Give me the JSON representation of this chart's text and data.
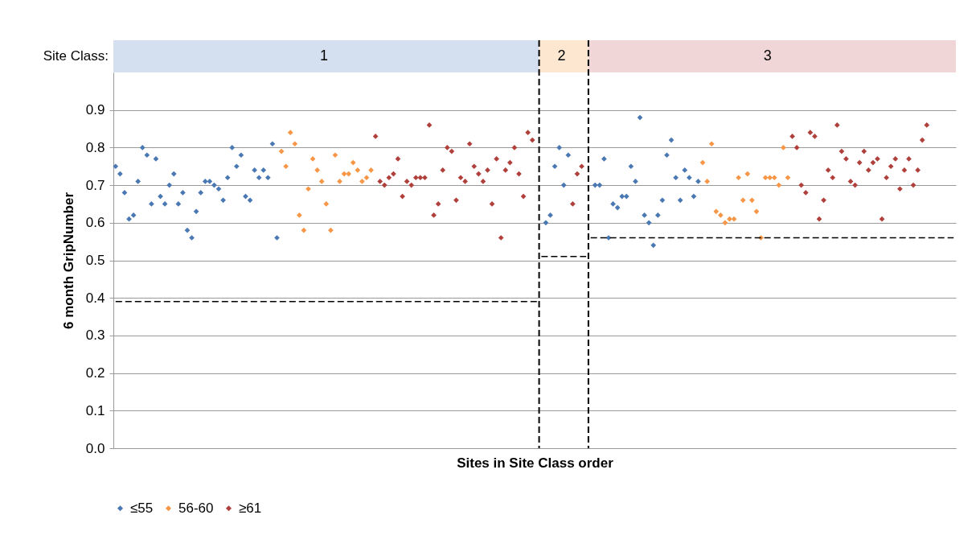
{
  "chart_data": {
    "type": "scatter",
    "xlabel": "Sites in Site Class order",
    "ylabel": "6 month GripNumber",
    "categories": [
      null,
      null,
      null,
      null,
      null,
      null,
      null,
      null,
      null,
      null,
      null,
      null,
      null,
      null,
      null,
      null,
      null,
      null,
      null,
      null,
      null,
      null,
      null,
      null,
      null,
      null,
      null,
      null,
      null,
      null,
      null,
      null,
      null,
      null,
      null,
      null,
      null,
      null,
      null,
      null,
      null,
      null,
      null,
      null,
      null,
      null,
      null,
      null,
      null,
      null,
      null,
      null,
      null,
      null,
      null,
      null,
      null,
      null,
      null,
      null,
      null,
      null,
      null,
      null,
      null,
      null,
      null,
      null,
      null,
      null,
      null,
      null,
      null,
      null,
      null,
      null,
      null,
      null,
      null,
      null,
      null,
      null,
      null,
      null,
      null,
      null,
      null,
      null,
      null,
      null,
      null,
      null,
      null,
      null,
      null,
      null,
      null,
      null,
      null,
      null,
      null,
      null,
      null,
      null,
      null,
      null,
      null,
      null,
      null,
      null,
      null,
      null,
      null,
      null,
      null,
      null,
      null,
      null,
      null,
      null,
      null,
      null,
      null,
      null,
      null,
      null,
      null,
      null,
      null,
      null,
      null,
      null,
      null,
      null,
      null,
      null,
      null,
      null,
      null,
      null,
      null,
      null,
      null,
      null,
      null,
      null,
      null,
      null,
      null,
      null,
      null,
      null,
      null,
      null,
      null,
      null,
      null,
      null,
      null,
      null,
      null,
      null,
      null,
      null,
      null,
      null,
      null,
      null,
      null,
      null,
      null,
      null,
      null,
      null,
      null,
      null,
      null,
      null,
      null,
      null,
      null,
      null,
      null,
      null,
      null,
      null,
      null,
      null
    ],
    "ylim": [
      0,
      1.0
    ],
    "yticks": [
      {
        "value": 0,
        "label": "0.0"
      },
      0.1,
      0.2,
      0.3,
      0.4,
      0.5,
      0.6,
      0.7,
      0.8,
      0.9
    ],
    "grid": "y",
    "legend": "bottom",
    "tick_labels": "y",
    "annotations": [
      "Site Class:",
      "1",
      "2",
      "3"
    ],
    "series": [
      {
        "name": "≤55",
        "marker": "diamond",
        "color": "#4a78b2",
        "values": [
          0.75,
          0.73,
          0.68,
          0.61,
          0.62,
          0.71,
          0.8,
          0.78,
          0.65,
          0.77,
          0.67,
          0.65,
          0.7,
          0.73,
          0.65,
          0.68,
          0.58,
          0.56,
          0.63,
          0.68,
          0.71,
          0.71,
          0.7,
          0.69,
          0.66,
          0.72,
          0.8,
          0.75,
          0.78,
          0.67,
          0.66,
          0.74,
          0.72,
          0.74,
          0.72,
          0.81,
          0.56,
          null,
          null,
          null,
          null,
          null,
          null,
          null,
          null,
          null,
          null,
          null,
          null,
          null,
          null,
          null,
          null,
          null,
          null,
          null,
          null,
          null,
          null,
          null,
          null,
          null,
          null,
          null,
          null,
          null,
          null,
          null,
          null,
          null,
          null,
          null,
          null,
          null,
          null,
          null,
          null,
          null,
          null,
          null,
          null,
          null,
          null,
          null,
          null,
          null,
          null,
          null,
          null,
          null,
          null,
          null,
          null,
          null,
          null,
          null,
          0.6,
          0.62,
          0.75,
          0.8,
          0.7,
          0.78,
          null,
          null,
          null,
          null,
          null,
          0.7,
          0.7,
          0.77,
          0.56,
          0.65,
          0.64,
          0.67,
          0.67,
          0.75,
          0.71,
          0.88,
          0.62,
          0.6,
          0.54,
          0.62,
          0.66,
          0.78,
          0.82,
          0.72,
          0.66,
          0.74,
          0.72,
          0.67,
          0.71,
          null,
          null,
          null,
          null,
          null,
          null,
          null,
          null,
          null,
          null,
          null,
          null,
          null,
          null,
          null,
          null,
          null,
          null,
          null,
          null,
          null,
          null,
          null,
          null,
          null,
          null,
          null,
          null,
          null,
          null,
          null,
          null,
          null,
          null,
          null,
          null,
          null,
          null,
          null,
          null,
          null,
          null,
          null,
          null,
          null,
          null,
          null,
          null,
          null,
          null,
          null,
          null,
          null,
          null,
          null,
          null,
          null
        ]
      },
      {
        "name": "56-60",
        "marker": "diamond",
        "color": "#f79646",
        "values": [
          null,
          null,
          null,
          null,
          null,
          null,
          null,
          null,
          null,
          null,
          null,
          null,
          null,
          null,
          null,
          null,
          null,
          null,
          null,
          null,
          null,
          null,
          null,
          null,
          null,
          null,
          null,
          null,
          null,
          null,
          null,
          null,
          null,
          null,
          null,
          null,
          null,
          0.79,
          0.75,
          0.84,
          0.81,
          0.62,
          0.58,
          0.69,
          0.77,
          0.74,
          0.71,
          0.65,
          0.58,
          0.78,
          0.71,
          0.73,
          0.73,
          0.76,
          0.74,
          0.71,
          0.72,
          0.74,
          null,
          null,
          null,
          null,
          null,
          null,
          null,
          null,
          null,
          null,
          null,
          null,
          null,
          null,
          null,
          null,
          null,
          null,
          null,
          null,
          null,
          null,
          null,
          null,
          null,
          null,
          null,
          null,
          null,
          null,
          null,
          null,
          null,
          null,
          null,
          null,
          null,
          null,
          null,
          null,
          null,
          null,
          null,
          null,
          null,
          null,
          null,
          null,
          null,
          null,
          null,
          null,
          null,
          null,
          null,
          null,
          null,
          null,
          null,
          null,
          null,
          null,
          null,
          null,
          null,
          null,
          null,
          null,
          null,
          null,
          null,
          null,
          null,
          0.76,
          0.71,
          0.81,
          0.63,
          0.62,
          0.6,
          0.61,
          0.61,
          0.72,
          0.66,
          0.73,
          0.66,
          0.63,
          0.56,
          0.72,
          0.72,
          0.72,
          0.7,
          0.8,
          0.72,
          null,
          null,
          null,
          null,
          null,
          null,
          null,
          null,
          null,
          null,
          null,
          null,
          null,
          null,
          null,
          null,
          null,
          null,
          null,
          null,
          null,
          null,
          null,
          null,
          null,
          null,
          null,
          null,
          null,
          null,
          null,
          null,
          null,
          null,
          null,
          null,
          null
        ]
      },
      {
        "name": "≥61",
        "marker": "diamond",
        "color": "#b0403c",
        "values": [
          null,
          null,
          null,
          null,
          null,
          null,
          null,
          null,
          null,
          null,
          null,
          null,
          null,
          null,
          null,
          null,
          null,
          null,
          null,
          null,
          null,
          null,
          null,
          null,
          null,
          null,
          null,
          null,
          null,
          null,
          null,
          null,
          null,
          null,
          null,
          null,
          null,
          null,
          null,
          null,
          null,
          null,
          null,
          null,
          null,
          null,
          null,
          null,
          null,
          null,
          null,
          null,
          null,
          null,
          null,
          null,
          null,
          null,
          0.83,
          0.71,
          0.7,
          0.72,
          0.73,
          0.77,
          0.67,
          0.71,
          0.7,
          0.72,
          0.72,
          0.72,
          0.86,
          0.62,
          0.65,
          0.74,
          0.8,
          0.79,
          0.66,
          0.72,
          0.71,
          0.81,
          0.75,
          0.73,
          0.71,
          0.74,
          0.65,
          0.77,
          0.56,
          0.74,
          0.76,
          0.8,
          0.73,
          0.67,
          0.84,
          0.82,
          null,
          null,
          null,
          null,
          null,
          null,
          null,
          null,
          0.65,
          0.73,
          0.75,
          null,
          null,
          null,
          null,
          null,
          null,
          null,
          null,
          null,
          null,
          null,
          null,
          null,
          null,
          null,
          null,
          null,
          null,
          null,
          null,
          null,
          null,
          null,
          null,
          null,
          null,
          null,
          null,
          null,
          null,
          null,
          null,
          null,
          null,
          null,
          null,
          null,
          null,
          null,
          null,
          null,
          null,
          null,
          null,
          null,
          null,
          0.83,
          0.8,
          0.7,
          0.68,
          0.84,
          0.83,
          0.61,
          0.66,
          0.74,
          0.72,
          0.86,
          0.79,
          0.77,
          0.71,
          0.7,
          0.76,
          0.79,
          0.74,
          0.76,
          0.77,
          0.61,
          0.72,
          0.75,
          0.77,
          0.69,
          0.74,
          0.77,
          0.7,
          0.74,
          0.82,
          0.86,
          null,
          null,
          null,
          null,
          null,
          null
        ]
      },
      {
        "type": "line",
        "color": "#000000",
        "line_style": "dashed",
        "values": [
          0.39,
          0.39,
          0.39,
          0.39,
          0.39,
          0.39,
          0.39,
          0.39,
          0.39,
          0.39,
          0.39,
          0.39,
          0.39,
          0.39,
          0.39,
          0.39,
          0.39,
          0.39,
          0.39,
          0.39,
          0.39,
          0.39,
          0.39,
          0.39,
          0.39,
          0.39,
          0.39,
          0.39,
          0.39,
          0.39,
          0.39,
          0.39,
          0.39,
          0.39,
          0.39,
          0.39,
          0.39,
          0.39,
          0.39,
          0.39,
          0.39,
          0.39,
          0.39,
          0.39,
          0.39,
          0.39,
          0.39,
          0.39,
          0.39,
          0.39,
          0.39,
          0.39,
          0.39,
          0.39,
          0.39,
          0.39,
          0.39,
          0.39,
          0.39,
          0.39,
          0.39,
          0.39,
          0.39,
          0.39,
          0.39,
          0.39,
          0.39,
          0.39,
          0.39,
          0.39,
          0.39,
          0.39,
          0.39,
          0.39,
          0.39,
          0.39,
          0.39,
          0.39,
          0.39,
          0.39,
          0.39,
          0.39,
          0.39,
          0.39,
          0.39,
          0.39,
          0.39,
          0.39,
          0.39,
          0.39,
          0.39,
          0.39,
          0.39,
          0.39,
          0.39,
          null,
          null,
          null,
          null,
          null,
          null,
          null,
          null,
          null,
          null,
          null,
          null,
          null,
          null,
          null,
          null,
          null,
          null,
          null,
          null,
          null,
          null,
          null,
          null,
          null,
          null,
          null,
          null,
          null,
          null,
          null,
          null,
          null,
          null,
          null,
          null,
          null,
          null,
          null,
          null,
          null,
          null,
          null,
          null,
          null,
          null,
          null,
          null,
          null,
          null,
          null,
          null,
          null,
          null,
          null,
          null,
          null,
          null,
          null,
          null,
          null,
          null,
          null,
          null,
          null,
          null,
          null,
          null,
          null,
          null,
          null,
          null,
          null,
          null,
          null,
          null,
          null,
          null,
          null,
          null,
          null,
          null,
          null,
          null,
          null,
          null,
          null,
          null,
          null,
          null,
          null,
          null,
          null
        ]
      },
      {
        "type": "line",
        "color": "#000000",
        "line_style": "dashed",
        "values": [
          null,
          null,
          null,
          null,
          null,
          null,
          null,
          null,
          null,
          null,
          null,
          null,
          null,
          null,
          null,
          null,
          null,
          null,
          null,
          null,
          null,
          null,
          null,
          null,
          null,
          null,
          null,
          null,
          null,
          null,
          null,
          null,
          null,
          null,
          null,
          null,
          null,
          null,
          null,
          null,
          null,
          null,
          null,
          null,
          null,
          null,
          null,
          null,
          null,
          null,
          null,
          null,
          null,
          null,
          null,
          null,
          null,
          null,
          null,
          null,
          null,
          null,
          null,
          null,
          null,
          null,
          null,
          null,
          null,
          null,
          null,
          null,
          null,
          null,
          null,
          null,
          null,
          null,
          null,
          null,
          null,
          null,
          null,
          null,
          null,
          null,
          null,
          null,
          null,
          null,
          null,
          null,
          null,
          null,
          null,
          0.51,
          0.51,
          0.51,
          0.51,
          0.51,
          0.51,
          0.51,
          0.51,
          0.51,
          0.51,
          0.51,
          null,
          null,
          null,
          null,
          null,
          null,
          null,
          null,
          null,
          null,
          null,
          null,
          null,
          null,
          null,
          null,
          null,
          null,
          null,
          null,
          null,
          null,
          null,
          null,
          null,
          null,
          null,
          null,
          null,
          null,
          null,
          null,
          null,
          null,
          null,
          null,
          null,
          null,
          null,
          null,
          null,
          null,
          null,
          null,
          null,
          null,
          null,
          null,
          null,
          null,
          null,
          null,
          null,
          null,
          null,
          null,
          null,
          null,
          null,
          null,
          null,
          null,
          null,
          null,
          null,
          null,
          null,
          null,
          null,
          null,
          null,
          null,
          null,
          null,
          null,
          null,
          null,
          null,
          null,
          null,
          null,
          null
        ]
      },
      {
        "type": "line",
        "color": "#000000",
        "line_style": "dashed",
        "values": [
          null,
          null,
          null,
          null,
          null,
          null,
          null,
          null,
          null,
          null,
          null,
          null,
          null,
          null,
          null,
          null,
          null,
          null,
          null,
          null,
          null,
          null,
          null,
          null,
          null,
          null,
          null,
          null,
          null,
          null,
          null,
          null,
          null,
          null,
          null,
          null,
          null,
          null,
          null,
          null,
          null,
          null,
          null,
          null,
          null,
          null,
          null,
          null,
          null,
          null,
          null,
          null,
          null,
          null,
          null,
          null,
          null,
          null,
          null,
          null,
          null,
          null,
          null,
          null,
          null,
          null,
          null,
          null,
          null,
          null,
          null,
          null,
          null,
          null,
          null,
          null,
          null,
          null,
          null,
          null,
          null,
          null,
          null,
          null,
          null,
          null,
          null,
          null,
          null,
          null,
          null,
          null,
          null,
          null,
          null,
          null,
          null,
          null,
          null,
          null,
          null,
          null,
          null,
          null,
          null,
          null,
          0.56,
          0.56,
          0.56,
          0.56,
          0.56,
          0.56,
          0.56,
          0.56,
          0.56,
          0.56,
          0.56,
          0.56,
          0.56,
          0.56,
          0.56,
          0.56,
          0.56,
          0.56,
          0.56,
          0.56,
          0.56,
          0.56,
          0.56,
          0.56,
          0.56,
          0.56,
          0.56,
          0.56,
          0.56,
          0.56,
          0.56,
          0.56,
          0.56,
          0.56,
          0.56,
          0.56,
          0.56,
          0.56,
          0.56,
          0.56,
          0.56,
          0.56,
          0.56,
          0.56,
          0.56,
          0.56,
          0.56,
          0.56,
          0.56,
          0.56,
          0.56,
          0.56,
          0.56,
          0.56,
          0.56,
          0.56,
          0.56,
          0.56,
          0.56,
          0.56,
          0.56,
          0.56,
          0.56,
          0.56,
          0.56,
          0.56,
          0.56,
          0.56,
          0.56,
          0.56,
          0.56,
          0.56,
          0.56,
          0.56,
          0.56,
          0.56,
          0.56,
          0.56,
          0.56,
          0.56,
          0.56,
          0.56
        ]
      }
    ]
  }
}
